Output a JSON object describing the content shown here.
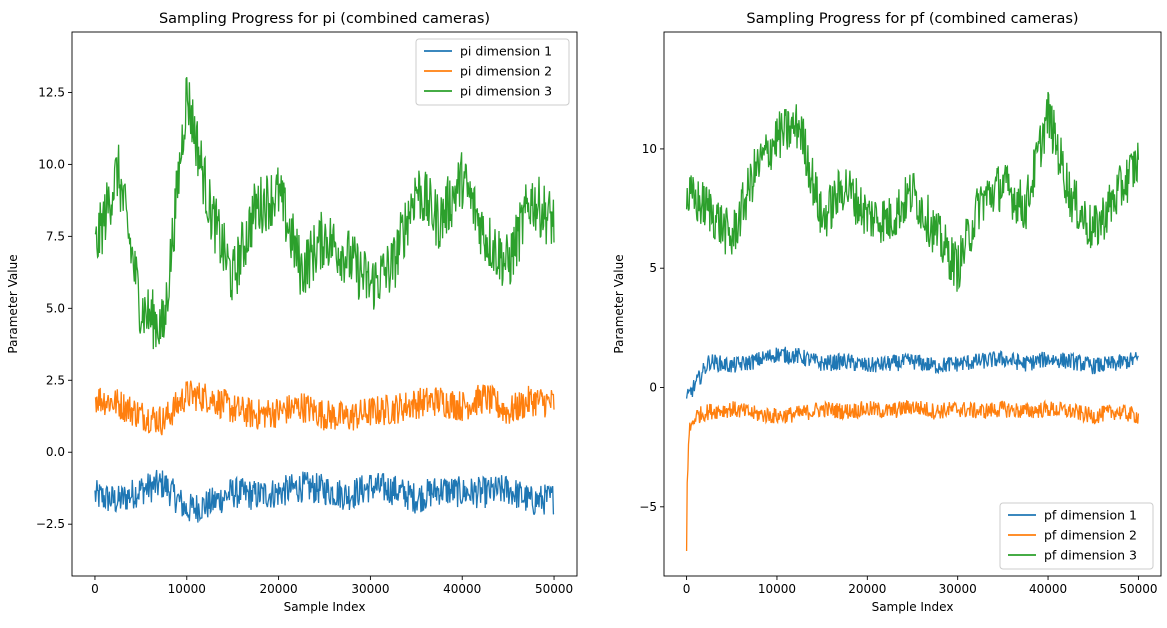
{
  "chart_data": [
    {
      "type": "line",
      "title": "Sampling Progress for pi (combined cameras)",
      "xlabel": "Sample Index",
      "ylabel": "Parameter Value",
      "xlim": [
        -2500,
        52500
      ],
      "ylim": [
        -4.3,
        14.6
      ],
      "x_ticks": [
        0,
        10000,
        20000,
        30000,
        40000,
        50000
      ],
      "x_tick_labels": [
        "0",
        "10000",
        "20000",
        "30000",
        "40000",
        "50000"
      ],
      "y_ticks": [
        -2.5,
        0,
        2.5,
        5,
        7.5,
        10,
        12.5
      ],
      "y_tick_labels": [
        "−2.5",
        "0.0",
        "2.5",
        "5.0",
        "7.5",
        "10.0",
        "12.5"
      ],
      "grid": false,
      "legend_position": "upper right",
      "legend": [
        "pi dimension 1",
        "pi dimension 2",
        "pi dimension 3"
      ],
      "series": [
        {
          "name": "pi dimension 1",
          "color": "#1f77b4",
          "x": [
            0,
            2500,
            5000,
            7500,
            10000,
            12500,
            15000,
            17500,
            20000,
            22500,
            25000,
            27500,
            30000,
            32500,
            35000,
            37500,
            40000,
            42500,
            45000,
            47500,
            50000
          ],
          "y": [
            -1.5,
            -1.7,
            -1.3,
            -1.1,
            -2.0,
            -1.8,
            -1.4,
            -1.5,
            -1.4,
            -1.2,
            -1.3,
            -1.5,
            -1.2,
            -1.3,
            -1.6,
            -1.3,
            -1.4,
            -1.4,
            -1.3,
            -1.7,
            -1.6
          ]
        },
        {
          "name": "pi dimension 2",
          "color": "#ff7f0e",
          "x": [
            0,
            2500,
            5000,
            7500,
            10000,
            12500,
            15000,
            17500,
            20000,
            22500,
            25000,
            27500,
            30000,
            32500,
            35000,
            37500,
            40000,
            42500,
            45000,
            47500,
            50000
          ],
          "y": [
            1.9,
            1.7,
            1.3,
            1.1,
            2.0,
            1.9,
            1.5,
            1.3,
            1.4,
            1.6,
            1.3,
            1.2,
            1.4,
            1.5,
            1.7,
            1.8,
            1.6,
            1.9,
            1.4,
            1.8,
            1.7
          ]
        },
        {
          "name": "pi dimension 3",
          "color": "#2ca02c",
          "x": [
            0,
            2500,
            5000,
            7500,
            10000,
            12500,
            15000,
            17500,
            20000,
            22500,
            25000,
            27500,
            30000,
            32500,
            35000,
            37500,
            40000,
            42500,
            45000,
            47500,
            50000
          ],
          "y": [
            7.0,
            9.8,
            5.0,
            4.3,
            12.5,
            8.5,
            6.0,
            8.5,
            9.0,
            6.3,
            7.5,
            6.8,
            5.8,
            6.5,
            9.2,
            8.0,
            9.5,
            7.5,
            6.5,
            8.8,
            8.0
          ]
        }
      ]
    },
    {
      "type": "line",
      "title": "Sampling Progress for pf (combined cameras)",
      "xlabel": "Sample Index",
      "ylabel": "Parameter Value",
      "xlim": [
        -2500,
        52500
      ],
      "ylim": [
        -7.9,
        14.9
      ],
      "x_ticks": [
        0,
        10000,
        20000,
        30000,
        40000,
        50000
      ],
      "x_tick_labels": [
        "0",
        "10000",
        "20000",
        "30000",
        "40000",
        "50000"
      ],
      "y_ticks": [
        -5,
        0,
        5,
        10
      ],
      "y_tick_labels": [
        "−5",
        "0",
        "5",
        "10"
      ],
      "grid": false,
      "legend_position": "lower right",
      "legend": [
        "pf dimension 1",
        "pf dimension 2",
        "pf dimension 3"
      ],
      "series": [
        {
          "name": "pf dimension 1",
          "color": "#1f77b4",
          "x": [
            0,
            2500,
            5000,
            7500,
            10000,
            12500,
            15000,
            17500,
            20000,
            22500,
            25000,
            27500,
            30000,
            32500,
            35000,
            37500,
            40000,
            42500,
            45000,
            47500,
            50000
          ],
          "y": [
            -0.5,
            1.1,
            0.9,
            1.1,
            1.4,
            1.3,
            1.0,
            1.1,
            0.9,
            1.0,
            1.1,
            0.9,
            1.0,
            1.1,
            1.2,
            1.0,
            1.2,
            1.1,
            0.9,
            1.0,
            1.2
          ]
        },
        {
          "name": "pf dimension 2",
          "color": "#ff7f0e",
          "x": [
            0,
            50,
            300,
            1000,
            2500,
            5000,
            7500,
            10000,
            12500,
            15000,
            17500,
            20000,
            22500,
            25000,
            27500,
            30000,
            32500,
            35000,
            37500,
            40000,
            42500,
            45000,
            47500,
            50000
          ],
          "y": [
            -6.9,
            -4.0,
            -1.8,
            -1.2,
            -1.0,
            -0.9,
            -1.1,
            -1.2,
            -1.1,
            -0.9,
            -1.0,
            -0.9,
            -1.0,
            -0.8,
            -1.0,
            -0.9,
            -1.0,
            -0.9,
            -1.0,
            -0.9,
            -1.0,
            -1.2,
            -1.0,
            -1.2
          ]
        },
        {
          "name": "pf dimension 3",
          "color": "#2ca02c",
          "x": [
            0,
            2500,
            5000,
            7500,
            10000,
            12500,
            15000,
            17500,
            20000,
            22500,
            25000,
            27500,
            30000,
            32500,
            35000,
            37500,
            40000,
            42500,
            45000,
            47500,
            50000
          ],
          "y": [
            8.0,
            7.5,
            6.2,
            9.0,
            10.5,
            11.0,
            7.0,
            8.5,
            7.2,
            7.0,
            8.2,
            6.5,
            5.0,
            7.8,
            8.5,
            7.5,
            11.5,
            8.0,
            6.5,
            8.0,
            9.5
          ]
        }
      ]
    }
  ]
}
